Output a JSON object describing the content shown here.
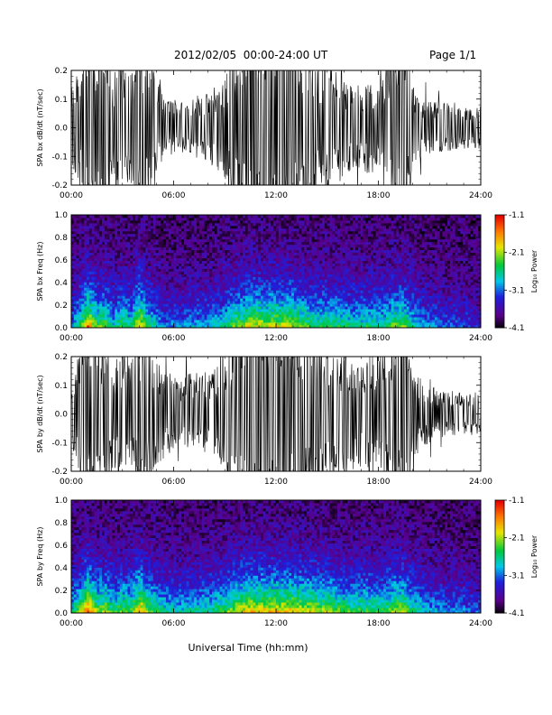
{
  "header": {
    "title": "2012/02/05  00:00-24:00 UT",
    "page": "Page 1/1"
  },
  "footer": {
    "xlabel": "Universal Time (hh:mm)"
  },
  "chart_data": [
    {
      "type": "line",
      "ylabel": "SPA bx dB/dt (nT/sec)",
      "xticks": [
        "00:00",
        "06:00",
        "12:00",
        "18:00",
        "24:00"
      ],
      "xlim": [
        0,
        24
      ],
      "ylim": [
        -0.2,
        0.2
      ],
      "yticks": [
        "0.2",
        "0.1",
        "0.0",
        "-0.1",
        "-0.2"
      ],
      "envelope": {
        "hours": [
          0,
          0.5,
          1,
          1.5,
          2,
          2.5,
          3,
          3.5,
          4,
          4.5,
          5,
          5.5,
          6,
          6.5,
          7,
          7.5,
          8,
          8.5,
          9,
          9.5,
          10,
          10.5,
          11,
          11.5,
          12,
          12.5,
          13,
          13.5,
          14,
          14.5,
          15,
          15.5,
          16,
          16.5,
          17,
          17.5,
          18,
          18.5,
          19,
          19.5,
          20,
          20.5,
          21,
          21.5,
          22,
          22.5,
          23,
          23.5,
          24
        ],
        "amplitude": [
          0.09,
          0.14,
          0.26,
          0.2,
          0.22,
          0.12,
          0.2,
          0.13,
          0.26,
          0.18,
          0.12,
          0.06,
          0.07,
          0.06,
          0.07,
          0.08,
          0.08,
          0.1,
          0.12,
          0.2,
          0.18,
          0.3,
          0.3,
          0.25,
          0.3,
          0.28,
          0.25,
          0.22,
          0.2,
          0.14,
          0.15,
          0.14,
          0.12,
          0.1,
          0.1,
          0.12,
          0.09,
          0.17,
          0.24,
          0.26,
          0.1,
          0.07,
          0.06,
          0.06,
          0.06,
          0.05,
          0.05,
          0.05,
          0.05
        ]
      }
    },
    {
      "type": "heatmap",
      "ylabel": "SPA bx Freq (Hz)",
      "xticks": [
        "00:00",
        "06:00",
        "12:00",
        "18:00",
        "24:00"
      ],
      "xlim": [
        0,
        24
      ],
      "ylim": [
        0,
        1
      ],
      "yticks": [
        "1.0",
        "0.8",
        "0.6",
        "0.4",
        "0.2",
        "0.0"
      ],
      "colorbar": {
        "label": "Log₁₀ Power",
        "ticks": [
          "-1.1",
          "-2.1",
          "-3.1",
          "-4.1"
        ],
        "range": [
          -4.1,
          -1.1
        ]
      },
      "activity": [
        0.3,
        0.5,
        0.85,
        0.55,
        0.6,
        0.4,
        0.55,
        0.45,
        0.8,
        0.5,
        0.4,
        0.3,
        0.3,
        0.3,
        0.35,
        0.35,
        0.35,
        0.4,
        0.45,
        0.6,
        0.6,
        0.7,
        0.7,
        0.65,
        0.7,
        0.65,
        0.7,
        0.6,
        0.55,
        0.5,
        0.55,
        0.5,
        0.5,
        0.45,
        0.45,
        0.5,
        0.45,
        0.5,
        0.6,
        0.6,
        0.45,
        0.35,
        0.3,
        0.3,
        0.25,
        0.25,
        0.25,
        0.2,
        0.2
      ]
    },
    {
      "type": "line",
      "ylabel": "SPA by dB/dt (nT/sec)",
      "xticks": [
        "00:00",
        "06:00",
        "12:00",
        "18:00",
        "24:00"
      ],
      "xlim": [
        0,
        24
      ],
      "ylim": [
        -0.2,
        0.2
      ],
      "yticks": [
        "0.2",
        "0.1",
        "0.0",
        "-0.1",
        "-0.2"
      ],
      "envelope": {
        "hours": [
          0,
          0.5,
          1,
          1.5,
          2,
          2.5,
          3,
          3.5,
          4,
          4.5,
          5,
          5.5,
          6,
          6.5,
          7,
          7.5,
          8,
          8.5,
          9,
          9.5,
          10,
          10.5,
          11,
          11.5,
          12,
          12.5,
          13,
          13.5,
          14,
          14.5,
          15,
          15.5,
          16,
          16.5,
          17,
          17.5,
          18,
          18.5,
          19,
          19.5,
          20,
          20.5,
          21,
          21.5,
          22,
          22.5,
          23,
          23.5,
          24
        ],
        "amplitude": [
          0.07,
          0.15,
          0.27,
          0.18,
          0.2,
          0.12,
          0.17,
          0.12,
          0.22,
          0.15,
          0.12,
          0.1,
          0.09,
          0.08,
          0.1,
          0.1,
          0.1,
          0.11,
          0.13,
          0.2,
          0.22,
          0.27,
          0.3,
          0.28,
          0.3,
          0.3,
          0.26,
          0.24,
          0.22,
          0.18,
          0.18,
          0.16,
          0.15,
          0.13,
          0.13,
          0.14,
          0.14,
          0.18,
          0.23,
          0.26,
          0.12,
          0.08,
          0.07,
          0.06,
          0.05,
          0.05,
          0.05,
          0.05,
          0.05
        ]
      }
    },
    {
      "type": "heatmap",
      "ylabel": "SPA by Freq (Hz)",
      "xticks": [
        "00:00",
        "06:00",
        "12:00",
        "18:00",
        "24:00"
      ],
      "xlim": [
        0,
        24
      ],
      "ylim": [
        0,
        1
      ],
      "yticks": [
        "1.0",
        "0.8",
        "0.6",
        "0.4",
        "0.2",
        "0.0"
      ],
      "colorbar": {
        "label": "Log₁₀ Power",
        "ticks": [
          "-1.1",
          "-2.1",
          "-3.1",
          "-4.1"
        ],
        "range": [
          -4.1,
          -1.1
        ]
      },
      "activity": [
        0.4,
        0.6,
        0.9,
        0.6,
        0.65,
        0.5,
        0.6,
        0.55,
        0.85,
        0.6,
        0.5,
        0.45,
        0.45,
        0.4,
        0.45,
        0.45,
        0.45,
        0.5,
        0.55,
        0.65,
        0.7,
        0.75,
        0.75,
        0.75,
        0.75,
        0.75,
        0.75,
        0.7,
        0.7,
        0.65,
        0.65,
        0.6,
        0.55,
        0.55,
        0.55,
        0.55,
        0.5,
        0.55,
        0.65,
        0.65,
        0.5,
        0.4,
        0.35,
        0.35,
        0.3,
        0.3,
        0.3,
        0.25,
        0.25
      ]
    }
  ]
}
